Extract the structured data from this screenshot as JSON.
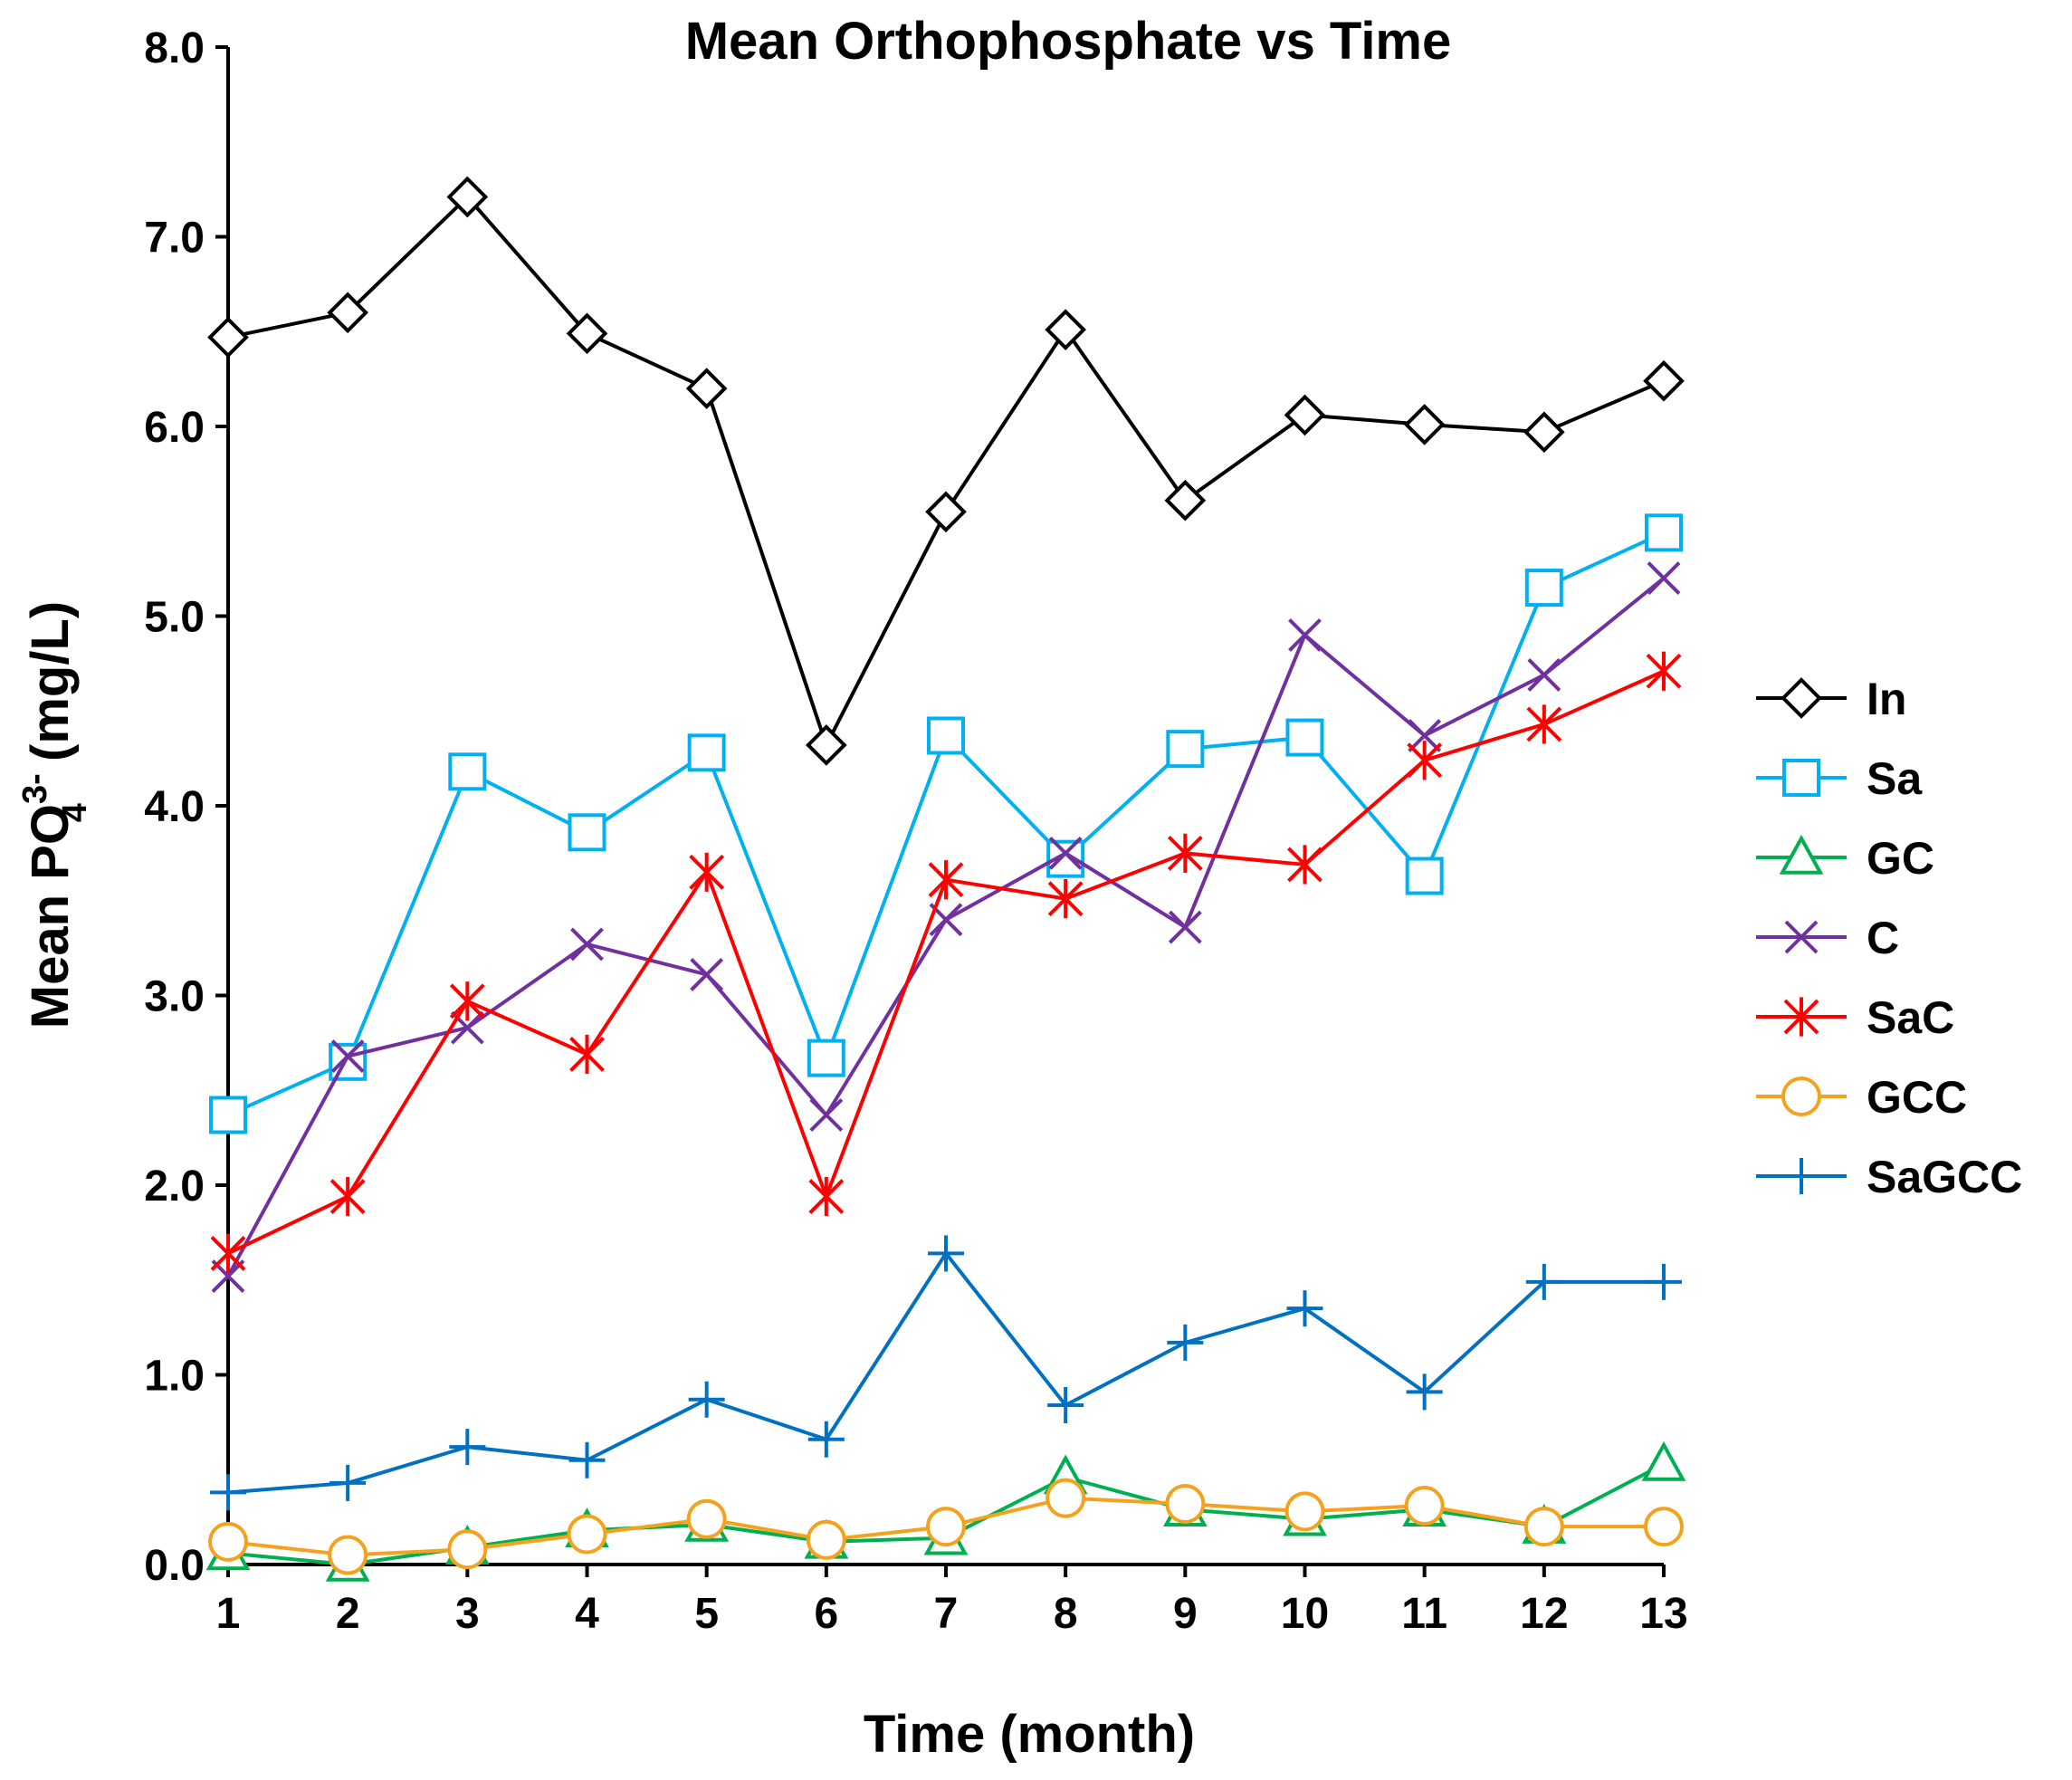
{
  "chart_data": {
    "type": "line",
    "title": "Mean Orthophosphate vs Time",
    "xlabel": "Time (month)",
    "ylabel_parts": {
      "prefix": "Mean PO",
      "subscript": "4",
      "superscript": "3-",
      "suffix": " (mg/L)"
    },
    "x": [
      1,
      2,
      3,
      4,
      5,
      6,
      7,
      8,
      9,
      10,
      11,
      12,
      13
    ],
    "xlim": [
      1,
      13
    ],
    "ylim": [
      0,
      8
    ],
    "yticks": [
      "0.0",
      "1.0",
      "2.0",
      "3.0",
      "4.0",
      "5.0",
      "6.0",
      "7.0",
      "8.0"
    ],
    "xticks": [
      "1",
      "2",
      "3",
      "4",
      "5",
      "6",
      "7",
      "8",
      "9",
      "10",
      "11",
      "12",
      "13"
    ],
    "legend_position": "right",
    "grid": false,
    "series": [
      {
        "name": "In",
        "color": "#000000",
        "marker": "diamond",
        "values": [
          6.47,
          6.6,
          7.21,
          6.49,
          6.2,
          4.32,
          5.55,
          6.51,
          5.61,
          6.06,
          6.01,
          5.97,
          6.24
        ]
      },
      {
        "name": "Sa",
        "color": "#00B0F0",
        "marker": "square",
        "values": [
          2.37,
          2.65,
          4.18,
          3.86,
          4.28,
          2.67,
          4.37,
          3.72,
          4.3,
          4.36,
          3.63,
          5.15,
          5.44
        ]
      },
      {
        "name": "GC",
        "color": "#00B050",
        "marker": "triangle",
        "values": [
          0.06,
          0.0,
          0.09,
          0.18,
          0.21,
          0.12,
          0.14,
          0.46,
          0.29,
          0.24,
          0.29,
          0.2,
          0.53
        ]
      },
      {
        "name": "C",
        "color": "#7030A0",
        "marker": "x",
        "values": [
          1.52,
          2.68,
          2.83,
          3.27,
          3.11,
          2.37,
          3.4,
          3.75,
          3.36,
          4.9,
          4.37,
          4.69,
          5.2
        ]
      },
      {
        "name": "SaC",
        "color": "#FF0000",
        "marker": "asterisk",
        "values": [
          1.64,
          1.94,
          2.97,
          2.69,
          3.65,
          1.94,
          3.61,
          3.51,
          3.75,
          3.69,
          4.24,
          4.43,
          4.71
        ]
      },
      {
        "name": "GCC",
        "color": "#F4A21D",
        "marker": "circle",
        "values": [
          0.12,
          0.05,
          0.08,
          0.16,
          0.24,
          0.13,
          0.2,
          0.35,
          0.32,
          0.28,
          0.31,
          0.2,
          0.2
        ]
      },
      {
        "name": "SaGCC",
        "color": "#0070C0",
        "marker": "plus",
        "values": [
          0.38,
          0.43,
          0.62,
          0.55,
          0.87,
          0.66,
          1.64,
          0.84,
          1.17,
          1.35,
          0.91,
          1.49,
          1.49
        ]
      }
    ]
  }
}
